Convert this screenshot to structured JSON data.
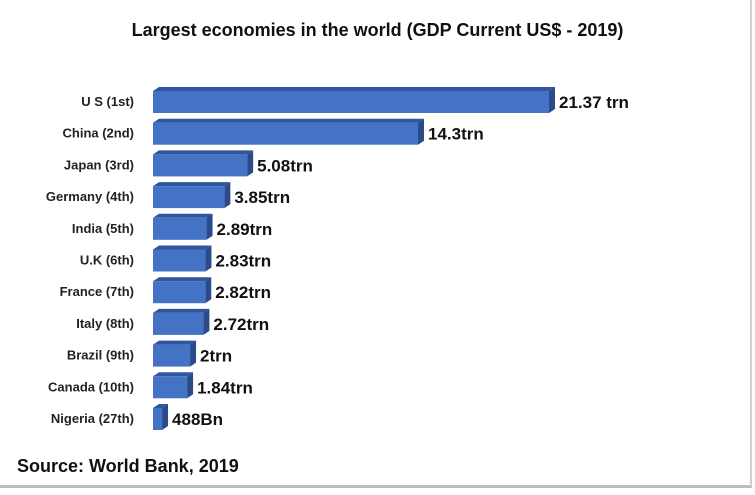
{
  "chart_data": {
    "type": "bar",
    "orientation": "horizontal",
    "style": "3d",
    "title": "Largest economies in the world (GDP Current US$ - 2019)",
    "source": "Source: World Bank, 2019",
    "xlabel": "",
    "ylabel": "",
    "unit": "trillion US$",
    "categories": [
      "U S (1st)",
      "China (2nd)",
      "Japan (3rd)",
      "Germany (4th)",
      "India (5th)",
      "U.K (6th)",
      "France (7th)",
      "Italy (8th)",
      "Brazil (9th)",
      "Canada (10th)",
      "Nigeria (27th)"
    ],
    "values": [
      21.37,
      14.3,
      5.08,
      3.85,
      2.89,
      2.83,
      2.82,
      2.72,
      2.0,
      1.84,
      0.488
    ],
    "data_labels": [
      "21.37 trn",
      "14.3trn",
      "5.08trn",
      "3.85trn",
      "2.89trn",
      "2.83trn",
      "2.82trn",
      "2.72trn",
      "2trn",
      "1.84trn",
      "488Bn"
    ],
    "colors": {
      "front": "#4472c4",
      "top": "#2f559e",
      "side": "#2a4a8a"
    },
    "grid": false
  }
}
